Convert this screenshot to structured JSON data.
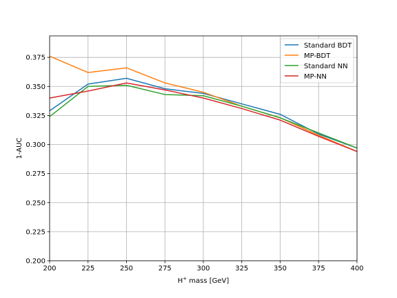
{
  "chart_data": {
    "type": "line",
    "title": "",
    "xlabel_base": "H",
    "xlabel_sup": "+",
    "xlabel_rest": " mass [GeV]",
    "ylabel": "1-AUC",
    "x": [
      200,
      225,
      250,
      275,
      300,
      325,
      350,
      375,
      400
    ],
    "xlim": [
      200,
      400
    ],
    "ylim": [
      0.2,
      0.3935
    ],
    "xticks": [
      200,
      225,
      250,
      275,
      300,
      325,
      350,
      375,
      400
    ],
    "yticks": [
      0.2,
      0.225,
      0.25,
      0.275,
      0.3,
      0.325,
      0.35,
      0.375
    ],
    "ytick_labels": [
      "0.200",
      "0.225",
      "0.250",
      "0.275",
      "0.300",
      "0.325",
      "0.350",
      "0.375"
    ],
    "grid": true,
    "legend_position": "top-right",
    "series": [
      {
        "name": "Standard BDT",
        "color": "#1f77b4",
        "values": [
          0.329,
          0.352,
          0.357,
          0.348,
          0.344,
          0.335,
          0.326,
          0.309,
          0.297
        ]
      },
      {
        "name": "MP-BDT",
        "color": "#ff7f0e",
        "values": [
          0.376,
          0.362,
          0.366,
          0.353,
          0.345,
          0.333,
          0.323,
          0.308,
          0.294
        ]
      },
      {
        "name": "Standard NN",
        "color": "#2ca02c",
        "values": [
          0.324,
          0.35,
          0.351,
          0.343,
          0.342,
          0.333,
          0.323,
          0.31,
          0.297
        ]
      },
      {
        "name": "MP-NN",
        "color": "#d62728",
        "values": [
          0.34,
          0.346,
          0.353,
          0.347,
          0.34,
          0.331,
          0.321,
          0.307,
          0.294
        ]
      }
    ]
  }
}
